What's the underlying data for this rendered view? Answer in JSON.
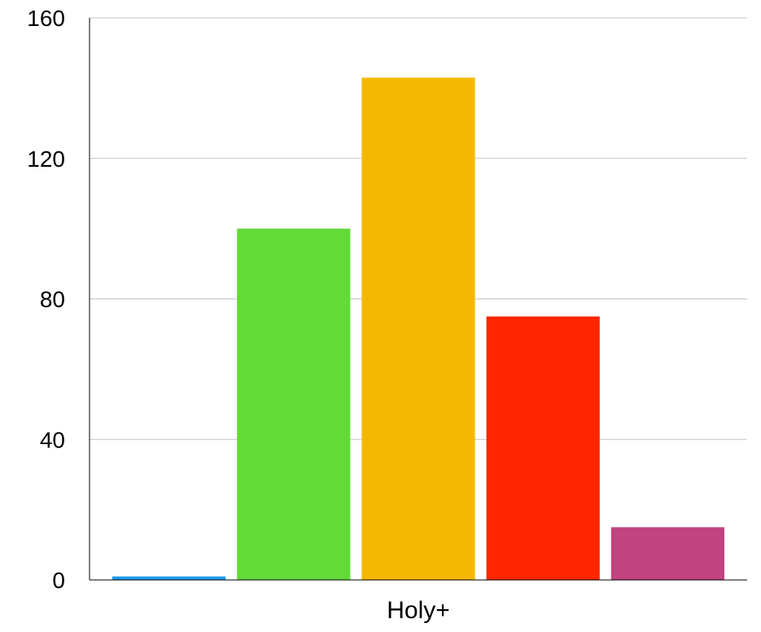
{
  "chart_data": {
    "type": "bar",
    "categories": [
      "Holy+"
    ],
    "series": [
      {
        "values": [
          1
        ],
        "color": "#1E9BEA"
      },
      {
        "values": [
          100
        ],
        "color": "#63DA38"
      },
      {
        "values": [
          143
        ],
        "color": "#F5B800"
      },
      {
        "values": [
          75
        ],
        "color": "#FF2600"
      },
      {
        "values": [
          15
        ],
        "color": "#C1437F"
      }
    ],
    "y_ticks": [
      "0",
      "40",
      "80",
      "120",
      "160"
    ],
    "ylim": [
      0,
      160
    ],
    "grid": true,
    "xlabel": "",
    "ylabel": "",
    "title": ""
  }
}
